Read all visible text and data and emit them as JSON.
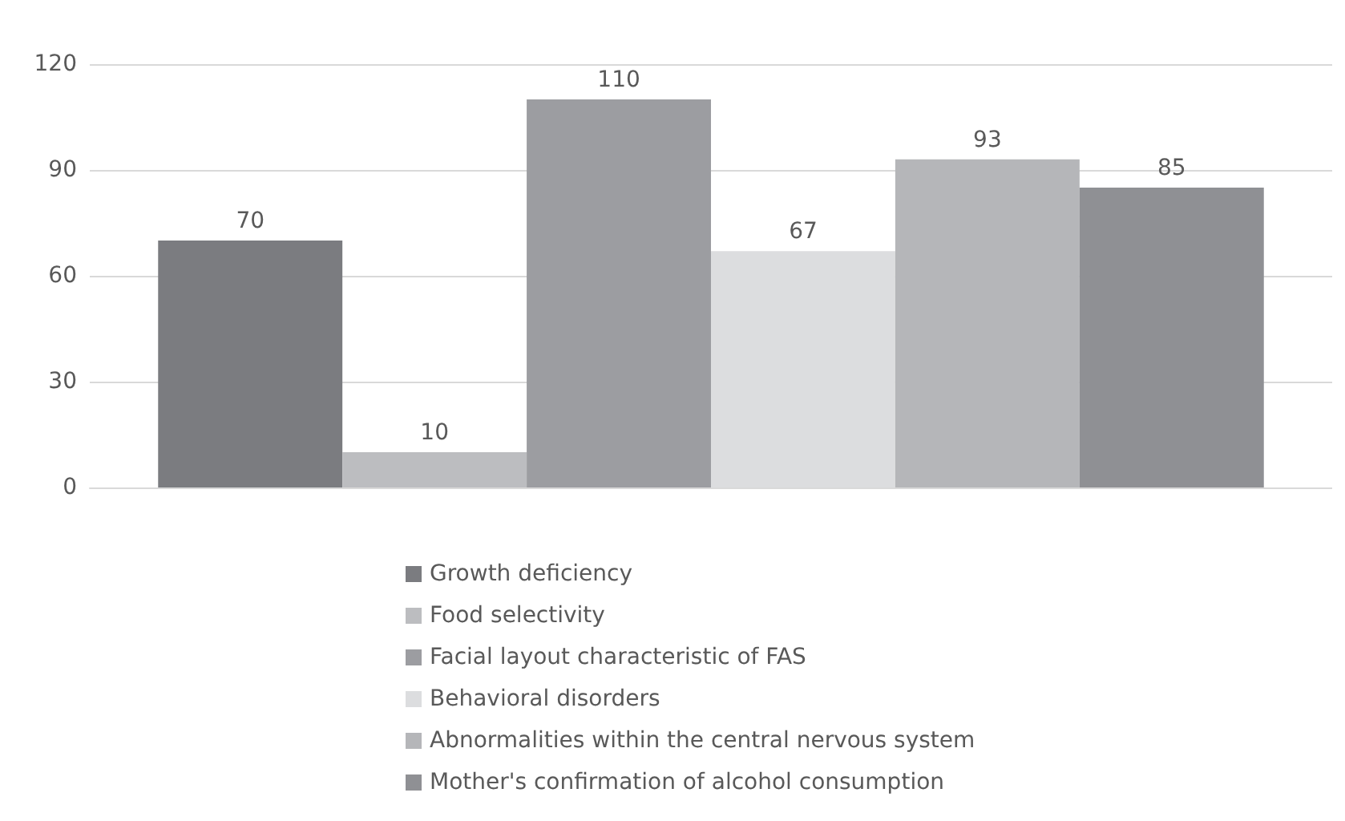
{
  "chart_data": {
    "type": "bar",
    "categories": [
      null
    ],
    "series": [
      {
        "name": "Growth deficiency",
        "color": "#7b7c80",
        "values": [
          70
        ]
      },
      {
        "name": "Food selectivity",
        "color": "#bcbdc0",
        "values": [
          10
        ]
      },
      {
        "name": "Facial layout characteristic of FAS",
        "color": "#9c9da1",
        "values": [
          110
        ]
      },
      {
        "name": "Behavioral disorders",
        "color": "#dcdddf",
        "values": [
          67
        ]
      },
      {
        "name": "Abnormalities within the central nervous system",
        "color": "#b5b6b9",
        "values": [
          93
        ]
      },
      {
        "name": "Mother's confirmation of alcohol consumption",
        "color": "#8f9094",
        "values": [
          85
        ]
      }
    ],
    "ylim": [
      0,
      120
    ],
    "yticks": [
      0,
      30,
      60,
      90,
      120
    ],
    "grid": "y",
    "data_labels": true,
    "legend": "bottom"
  }
}
